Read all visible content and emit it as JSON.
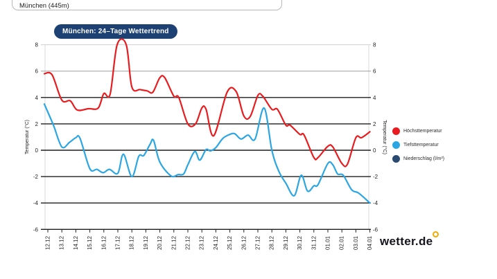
{
  "location_field": {
    "value": "München (445m)"
  },
  "chart_header": {
    "badge_label": "München: 24–Tage Wettertrend"
  },
  "chart_data": {
    "type": "line",
    "title": "München: 24–Tage Wettertrend",
    "y_axis_label_left": "Temperatur (°C)",
    "y_axis_label_right": "Temperatur (°C)",
    "ylim": [
      -6,
      8
    ],
    "y_ticks": [
      8,
      6,
      4,
      2,
      0,
      -2,
      -4,
      -6
    ],
    "grid": "horizontal",
    "legend_position": "right",
    "x_tick_labels": [
      "12.12",
      "13.12",
      "14.12",
      "15.12",
      "16.12",
      "17.12",
      "18.12",
      "19.12",
      "20.12",
      "21.12",
      "22.12",
      "23.12",
      "24.12",
      "25.12",
      "26.12",
      "27.12",
      "28.12",
      "29.12",
      "30.12",
      "31.12",
      "01.01",
      "02.01",
      "03.01",
      "04.01"
    ],
    "series": [
      {
        "name": "Höchsttemperatur",
        "color": "#e81c1e",
        "style": "line",
        "points": [
          [
            -0.25,
            5.8
          ],
          [
            0.3,
            5.72
          ],
          [
            1,
            3.8
          ],
          [
            1.6,
            3.75
          ],
          [
            2.1,
            3.05
          ],
          [
            2.9,
            3.15
          ],
          [
            3.6,
            3.2
          ],
          [
            4,
            4.3
          ],
          [
            4.45,
            4.25
          ],
          [
            4.95,
            8
          ],
          [
            5.6,
            8
          ],
          [
            6,
            4.8
          ],
          [
            6.6,
            4.6
          ],
          [
            7.1,
            4.5
          ],
          [
            7.5,
            4.4
          ],
          [
            8,
            5.5
          ],
          [
            8.35,
            5.5
          ],
          [
            9,
            4.1
          ],
          [
            9.35,
            4
          ],
          [
            10,
            2
          ],
          [
            10.55,
            2
          ],
          [
            11,
            3.2
          ],
          [
            11.3,
            3.1
          ],
          [
            11.85,
            1.1
          ],
          [
            12.8,
            4.4
          ],
          [
            13.45,
            4.45
          ],
          [
            14,
            2.6
          ],
          [
            14.45,
            2.55
          ],
          [
            15,
            4.15
          ],
          [
            15.35,
            4.1
          ],
          [
            16,
            3.1
          ],
          [
            16.4,
            3.1
          ],
          [
            17,
            1.9
          ],
          [
            17.3,
            1.9
          ],
          [
            18,
            1.2
          ],
          [
            18.3,
            1.15
          ],
          [
            19,
            -0.55
          ],
          [
            19.3,
            -0.55
          ],
          [
            20,
            0.3
          ],
          [
            20.35,
            0.25
          ],
          [
            21,
            -1
          ],
          [
            21.4,
            -1.05
          ],
          [
            22,
            0.95
          ],
          [
            22.4,
            0.95
          ],
          [
            23,
            1.4
          ]
        ]
      },
      {
        "name": "Tiefsttemperatur",
        "color": "#2ba6e3",
        "style": "line",
        "points": [
          [
            -0.25,
            3.5
          ],
          [
            0.4,
            1.9
          ],
          [
            1,
            0.25
          ],
          [
            1.55,
            0.6
          ],
          [
            2,
            0.95
          ],
          [
            2.3,
            0.9
          ],
          [
            3,
            -1.4
          ],
          [
            3.5,
            -1.45
          ],
          [
            3.95,
            -1.7
          ],
          [
            4.4,
            -1.45
          ],
          [
            5,
            -1.75
          ],
          [
            5.4,
            -0.3
          ],
          [
            6,
            -2
          ],
          [
            6.5,
            -0.45
          ],
          [
            6.85,
            -0.4
          ],
          [
            7.3,
            0.45
          ],
          [
            7.55,
            0.75
          ],
          [
            8,
            -0.9
          ],
          [
            8.8,
            -1.95
          ],
          [
            9.3,
            -1.85
          ],
          [
            9.7,
            -1.8
          ],
          [
            10,
            -1.1
          ],
          [
            10.5,
            -0.1
          ],
          [
            10.85,
            -0.75
          ],
          [
            11.3,
            0.05
          ],
          [
            11.6,
            -0.05
          ],
          [
            12,
            0.2
          ],
          [
            12.5,
            0.9
          ],
          [
            13,
            1.2
          ],
          [
            13.35,
            1.25
          ],
          [
            13.8,
            0.85
          ],
          [
            14.3,
            1.15
          ],
          [
            14.8,
            0.85
          ],
          [
            15.45,
            3.2
          ],
          [
            16,
            0
          ],
          [
            16.5,
            -1.6
          ],
          [
            17,
            -2.5
          ],
          [
            17.6,
            -3.45
          ],
          [
            18.1,
            -1.9
          ],
          [
            18.55,
            -3.1
          ],
          [
            19,
            -2.7
          ],
          [
            19.3,
            -2.6
          ],
          [
            20,
            -1
          ],
          [
            20.35,
            -1.1
          ],
          [
            20.7,
            -1.8
          ],
          [
            21.1,
            -1.9
          ],
          [
            21.7,
            -3
          ],
          [
            22.2,
            -3.25
          ],
          [
            23,
            -4
          ]
        ]
      },
      {
        "name": "Niederschlag (l/m²)",
        "color": "#2b4a72",
        "style": "bar",
        "points": []
      }
    ]
  },
  "logo": {
    "text": "wetter.de",
    "ring_color": "#f2a900"
  },
  "colors": {
    "badge_bg": "#1e4173",
    "badge_text": "#ffffff",
    "grid_dark": "#1d1d1d",
    "grid_light": "#cfcfcf"
  }
}
